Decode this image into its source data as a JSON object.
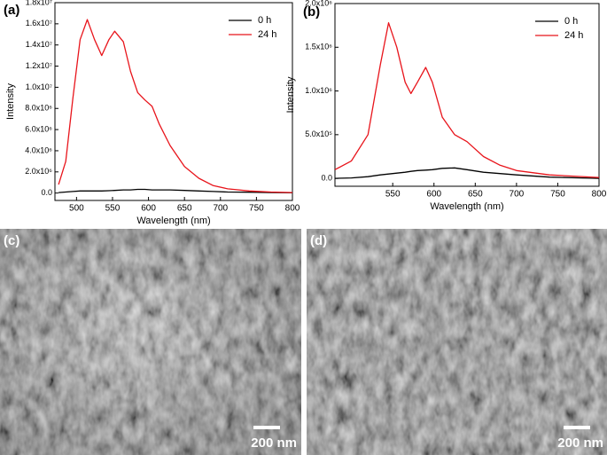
{
  "chart_data": [
    {
      "type": "line",
      "panel_label": "(a)",
      "xlabel": "Wavelength (nm)",
      "ylabel": "Intensity",
      "xlim": [
        470,
        800
      ],
      "xticks": [
        500,
        550,
        600,
        650,
        700,
        750,
        800
      ],
      "ylim": [
        -700000,
        18000000
      ],
      "yticks": [
        {
          "value": 0,
          "label": "0.0"
        },
        {
          "value": 2000000,
          "label": "2.0x10⁶"
        },
        {
          "value": 4000000,
          "label": "4.0x10⁶"
        },
        {
          "value": 6000000,
          "label": "6.0x10⁶"
        },
        {
          "value": 8000000,
          "label": "8.0x10⁶"
        },
        {
          "value": 10000000,
          "label": "1.0x10⁷"
        },
        {
          "value": 12000000,
          "label": "1.2x10⁷"
        },
        {
          "value": 14000000,
          "label": "1.4x10⁷"
        },
        {
          "value": 16000000,
          "label": "1.6x10⁷"
        },
        {
          "value": 18000000,
          "label": "1.8x10⁷"
        }
      ],
      "legend": "upper right",
      "x": [
        475,
        485,
        495,
        505,
        515,
        525,
        535,
        545,
        553,
        565,
        575,
        585,
        595,
        605,
        615,
        630,
        650,
        670,
        690,
        710,
        740,
        770,
        800
      ],
      "series": [
        {
          "name": "0 h",
          "color": "#000000",
          "values": [
            50000,
            100000,
            150000,
            200000,
            200000,
            200000,
            200000,
            220000,
            250000,
            300000,
            300000,
            350000,
            350000,
            300000,
            300000,
            300000,
            250000,
            200000,
            150000,
            100000,
            80000,
            50000,
            30000
          ]
        },
        {
          "name": "24 h",
          "color": "#e8141b",
          "values": [
            800000,
            3000000,
            9000000,
            14500000,
            16400000,
            14500000,
            13000000,
            14500000,
            15300000,
            14300000,
            11500000,
            9500000,
            8800000,
            8200000,
            6500000,
            4500000,
            2500000,
            1400000,
            700000,
            400000,
            200000,
            100000,
            50000
          ]
        }
      ]
    },
    {
      "type": "line",
      "panel_label": "(b)",
      "xlabel": "Wavelength (nm)",
      "ylabel": "Intensity",
      "xlim": [
        480,
        800
      ],
      "xticks": [
        550,
        600,
        650,
        700,
        750,
        800
      ],
      "ylim": [
        -90000,
        2000000
      ],
      "yticks": [
        {
          "value": 0,
          "label": "0.0"
        },
        {
          "value": 500000,
          "label": "5.0x10⁵"
        },
        {
          "value": 1000000,
          "label": "1.0x10⁶"
        },
        {
          "value": 1500000,
          "label": "1.5x10⁶"
        },
        {
          "value": 2000000,
          "label": "2.0x10⁶"
        }
      ],
      "legend": "upper right",
      "x": [
        480,
        500,
        520,
        535,
        545,
        555,
        565,
        572,
        580,
        590,
        598,
        610,
        625,
        640,
        660,
        680,
        700,
        740,
        800
      ],
      "series": [
        {
          "name": "0 h",
          "color": "#000000",
          "values": [
            0,
            5000,
            20000,
            40000,
            50000,
            60000,
            70000,
            80000,
            90000,
            95000,
            100000,
            115000,
            120000,
            100000,
            70000,
            55000,
            40000,
            15000,
            0
          ]
        },
        {
          "name": "24 h",
          "color": "#e8141b",
          "values": [
            100000,
            200000,
            500000,
            1300000,
            1780000,
            1500000,
            1100000,
            970000,
            1100000,
            1270000,
            1100000,
            700000,
            500000,
            420000,
            250000,
            150000,
            90000,
            40000,
            10000
          ]
        }
      ]
    }
  ],
  "images": [
    {
      "label": "(c)",
      "scale_bar": "200 nm"
    },
    {
      "label": "(d)",
      "scale_bar": "200 nm"
    }
  ]
}
